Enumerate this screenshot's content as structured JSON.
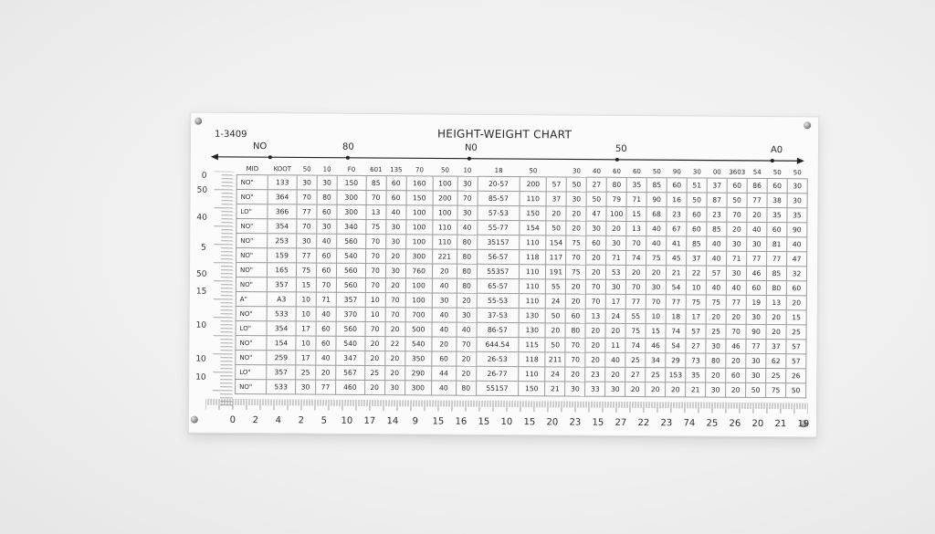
{
  "chart_code": "1-3409",
  "title": "HEIGHT-WEIGHT CHART",
  "top_axis_labels": [
    "NO",
    "80",
    "N0",
    "50",
    "A0"
  ],
  "left_labels": [
    "0",
    "50",
    "40",
    "5",
    "50",
    "15",
    "10",
    "10",
    "10"
  ],
  "column_headers": [
    "MID",
    "KOOT",
    "50",
    "10",
    "F0",
    "601",
    "135",
    "70",
    "50",
    "10",
    "18",
    "50",
    "",
    "30",
    "40",
    "60",
    "60",
    "50",
    "90",
    "30",
    "00",
    "3603",
    "54",
    "50",
    "50"
  ],
  "rows": [
    {
      "label": "NO\"",
      "cells": [
        "133",
        "30",
        "30",
        "150",
        "85",
        "60",
        "160",
        "100",
        "30",
        "20-57",
        "200",
        "57",
        "50",
        "27",
        "80",
        "35",
        "85",
        "60",
        "51",
        "37",
        "60",
        "86",
        "60",
        "30"
      ]
    },
    {
      "label": "NO\"",
      "cells": [
        "364",
        "70",
        "80",
        "300",
        "70",
        "60",
        "150",
        "200",
        "70",
        "85-57",
        "110",
        "37",
        "30",
        "50",
        "79",
        "71",
        "90",
        "16",
        "50",
        "87",
        "50",
        "77",
        "38",
        "30"
      ]
    },
    {
      "label": "LO\"",
      "cells": [
        "366",
        "77",
        "60",
        "300",
        "13",
        "40",
        "100",
        "100",
        "30",
        "57-53",
        "150",
        "20",
        "20",
        "47",
        "100",
        "15",
        "68",
        "23",
        "60",
        "23",
        "70",
        "20",
        "35",
        "35"
      ]
    },
    {
      "label": "NO\"",
      "cells": [
        "354",
        "70",
        "30",
        "340",
        "75",
        "30",
        "100",
        "110",
        "40",
        "55-77",
        "154",
        "50",
        "20",
        "30",
        "20",
        "13",
        "40",
        "67",
        "60",
        "85",
        "20",
        "40",
        "60",
        "90"
      ]
    },
    {
      "label": "NO\"",
      "cells": [
        "253",
        "30",
        "40",
        "560",
        "70",
        "30",
        "100",
        "110",
        "80",
        "35157",
        "110",
        "154",
        "75",
        "60",
        "30",
        "70",
        "40",
        "41",
        "85",
        "40",
        "30",
        "30",
        "81",
        "40"
      ]
    },
    {
      "label": "NO\"",
      "cells": [
        "159",
        "77",
        "60",
        "540",
        "70",
        "20",
        "300",
        "221",
        "80",
        "56-57",
        "118",
        "117",
        "70",
        "20",
        "71",
        "74",
        "75",
        "45",
        "37",
        "40",
        "71",
        "77",
        "77",
        "47"
      ]
    },
    {
      "label": "NO\"",
      "cells": [
        "165",
        "75",
        "60",
        "560",
        "70",
        "30",
        "760",
        "20",
        "80",
        "55357",
        "110",
        "191",
        "75",
        "20",
        "53",
        "20",
        "20",
        "21",
        "22",
        "57",
        "30",
        "46",
        "85",
        "32"
      ]
    },
    {
      "label": "NO\"",
      "cells": [
        "357",
        "15",
        "70",
        "560",
        "70",
        "20",
        "100",
        "40",
        "80",
        "65-57",
        "110",
        "55",
        "20",
        "70",
        "30",
        "70",
        "30",
        "54",
        "10",
        "40",
        "40",
        "60",
        "80",
        "60"
      ]
    },
    {
      "label": "A\"",
      "cells": [
        "A3",
        "10",
        "71",
        "357",
        "10",
        "70",
        "100",
        "30",
        "20",
        "55-53",
        "110",
        "24",
        "20",
        "70",
        "17",
        "77",
        "70",
        "77",
        "75",
        "75",
        "77",
        "19",
        "13",
        "20"
      ]
    },
    {
      "label": "NO\"",
      "cells": [
        "533",
        "10",
        "40",
        "370",
        "10",
        "70",
        "700",
        "40",
        "30",
        "37-53",
        "130",
        "50",
        "60",
        "13",
        "24",
        "55",
        "10",
        "18",
        "17",
        "20",
        "20",
        "30",
        "20",
        "15"
      ]
    },
    {
      "label": "LO\"",
      "cells": [
        "354",
        "17",
        "60",
        "560",
        "70",
        "20",
        "500",
        "40",
        "40",
        "86-57",
        "130",
        "20",
        "80",
        "20",
        "20",
        "75",
        "15",
        "74",
        "57",
        "25",
        "70",
        "90",
        "20",
        "25"
      ]
    },
    {
      "label": "NO\"",
      "cells": [
        "154",
        "10",
        "60",
        "540",
        "20",
        "22",
        "540",
        "20",
        "70",
        "644.54",
        "115",
        "50",
        "70",
        "20",
        "11",
        "74",
        "46",
        "54",
        "27",
        "30",
        "46",
        "77",
        "37",
        "57"
      ]
    },
    {
      "label": "NO\"",
      "cells": [
        "259",
        "17",
        "40",
        "347",
        "20",
        "20",
        "350",
        "60",
        "20",
        "26-53",
        "118",
        "211",
        "70",
        "20",
        "40",
        "25",
        "34",
        "29",
        "73",
        "80",
        "20",
        "30",
        "62",
        "57"
      ]
    },
    {
      "label": "LO\"",
      "cells": [
        "357",
        "25",
        "20",
        "567",
        "25",
        "20",
        "290",
        "44",
        "20",
        "26-77",
        "110",
        "24",
        "20",
        "23",
        "20",
        "27",
        "25",
        "153",
        "35",
        "20",
        "60",
        "30",
        "25",
        "26"
      ]
    },
    {
      "label": "NO\"",
      "cells": [
        "533",
        "30",
        "77",
        "460",
        "20",
        "30",
        "300",
        "40",
        "80",
        "55157",
        "150",
        "21",
        "30",
        "33",
        "30",
        "20",
        "20",
        "20",
        "21",
        "30",
        "20",
        "50",
        "75",
        "50"
      ]
    }
  ],
  "bottom_axis_labels": [
    "0",
    "2",
    "4",
    "2",
    "5",
    "10",
    "17",
    "14",
    "9",
    "15",
    "16",
    "15",
    "10",
    "15",
    "20",
    "23",
    "15",
    "27",
    "22",
    "23",
    "74",
    "25",
    "26",
    "20",
    "21",
    "19"
  ]
}
